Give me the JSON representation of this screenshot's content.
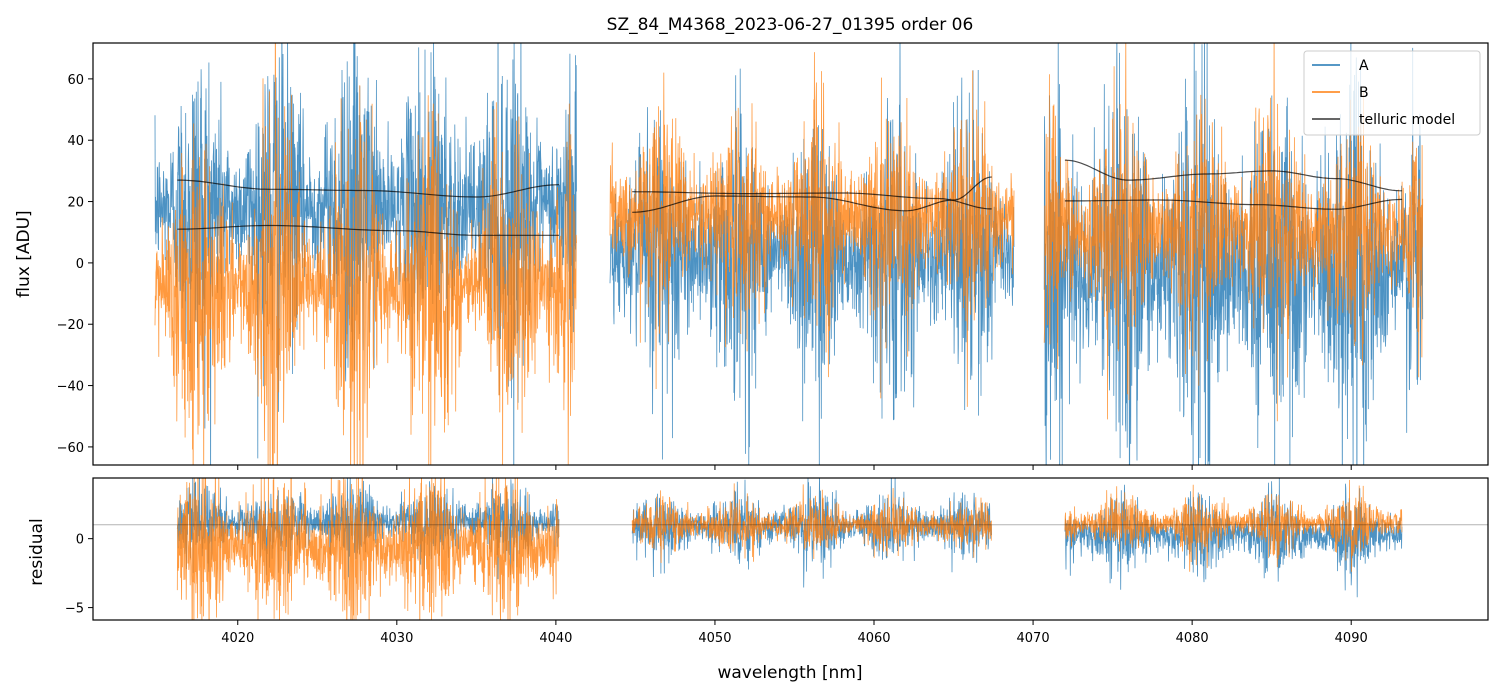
{
  "chart_data": {
    "type": "line",
    "title": "SZ_84_M4368_2023-06-27_01395  order 06",
    "xlabel": "wavelength [nm]",
    "xlim": [
      4010.9,
      4098.6
    ],
    "xticks": [
      4020,
      4030,
      4040,
      4050,
      4060,
      4070,
      4080,
      4090
    ],
    "panels": [
      {
        "name": "flux",
        "ylabel": "flux [ADU]",
        "ylim": [
          -65.9,
          71.7
        ],
        "yticks": [
          -60,
          -40,
          -20,
          0,
          20,
          40,
          60
        ],
        "legend": {
          "placement": "top-right",
          "entries": [
            "A",
            "B",
            "telluric model"
          ]
        },
        "series": [
          {
            "name": "A",
            "color": "#1f77b4",
            "segments": [
              {
                "x": [
                  4014.8,
                  4041.3
                ],
                "mean": 18,
                "std": 24
              },
              {
                "x": [
                  4043.4,
                  4068.8
                ],
                "mean": 3,
                "std": 22
              },
              {
                "x": [
                  4070.7,
                  4094.5
                ],
                "mean": -2,
                "std": 30
              }
            ]
          },
          {
            "name": "B",
            "color": "#ff7f0e",
            "segments": [
              {
                "x": [
                  4014.8,
                  4041.3
                ],
                "mean": -8,
                "std": 24
              },
              {
                "x": [
                  4043.4,
                  4068.8
                ],
                "mean": 15,
                "std": 16
              },
              {
                "x": [
                  4070.7,
                  4094.5
                ],
                "mean": 10,
                "std": 18
              }
            ]
          },
          {
            "name": "telluric model",
            "color": "#000000",
            "curves": [
              {
                "x": [
                  4016.2,
                  4022,
                  4028,
                  4035,
                  4040.2
                ],
                "y": [
                  27,
                  24,
                  23.6,
                  21.5,
                  25.5
                ]
              },
              {
                "x": [
                  4016.2,
                  4022,
                  4030,
                  4035,
                  4040.2
                ],
                "y": [
                  11,
                  12.2,
                  10.5,
                  9,
                  9
                ]
              },
              {
                "x": [
                  4044.8,
                  4052,
                  4058,
                  4064,
                  4067.4
                ],
                "y": [
                  23.2,
                  22.6,
                  22.8,
                  21,
                  17.6
                ]
              },
              {
                "x": [
                  4044.8,
                  4050,
                  4056,
                  4062,
                  4065,
                  4067.4
                ],
                "y": [
                  16.5,
                  21.8,
                  21.5,
                  17,
                  20.5,
                  28
                ]
              },
              {
                "x": [
                  4072,
                  4076,
                  4081,
                  4085,
                  4089,
                  4093.2
                ],
                "y": [
                  33.5,
                  27,
                  29,
                  30,
                  27.5,
                  23.5
                ]
              },
              {
                "x": [
                  4072,
                  4078,
                  4084,
                  4089,
                  4093.2
                ],
                "y": [
                  20.2,
                  20.5,
                  19,
                  17.5,
                  20.7
                ]
              }
            ]
          }
        ]
      },
      {
        "name": "residual",
        "ylabel": "residual",
        "ylim": [
          -5.9,
          4.4
        ],
        "yticks": [
          -5,
          0
        ],
        "hline": 1.0,
        "series": [
          {
            "name": "A",
            "color": "#1f77b4",
            "segments": [
              {
                "x": [
                  4016.2,
                  4040.2
                ],
                "mean": 1.2,
                "std": 1.3
              },
              {
                "x": [
                  4044.8,
                  4067.4
                ],
                "mean": 0.9,
                "std": 1.2
              },
              {
                "x": [
                  4072,
                  4093.2
                ],
                "mean": 0.3,
                "std": 1.4
              }
            ]
          },
          {
            "name": "B",
            "color": "#ff7f0e",
            "segments": [
              {
                "x": [
                  4016.2,
                  4040.2
                ],
                "mean": -0.6,
                "std": 2.6
              },
              {
                "x": [
                  4044.8,
                  4067.4
                ],
                "mean": 1.0,
                "std": 0.9
              },
              {
                "x": [
                  4072,
                  4093.2
                ],
                "mean": 1.1,
                "std": 1.0
              }
            ]
          }
        ]
      }
    ]
  }
}
